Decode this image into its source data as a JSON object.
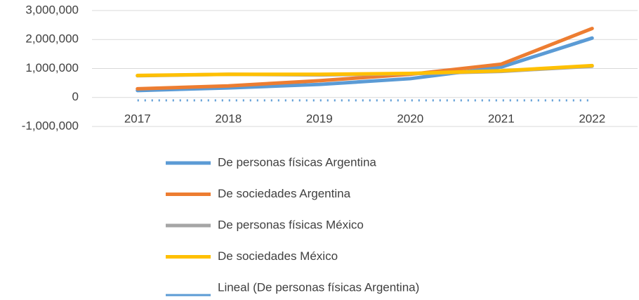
{
  "chart_data": {
    "type": "line",
    "categories": [
      "2017",
      "2018",
      "2019",
      "2020",
      "2021",
      "2022"
    ],
    "series": [
      {
        "name": "De personas físicas Argentina",
        "color": "#5b9bd5",
        "values": [
          240000,
          330000,
          450000,
          650000,
          1050000,
          2050000
        ]
      },
      {
        "name": "De sociedades Argentina",
        "color": "#ed7d31",
        "values": [
          300000,
          400000,
          580000,
          800000,
          1150000,
          2380000
        ]
      },
      {
        "name": "De personas físicas México",
        "color": "#a5a5a5",
        "values": [
          750000,
          800000,
          780000,
          820000,
          900000,
          1080000
        ]
      },
      {
        "name": "De sociedades México",
        "color": "#ffc000",
        "values": [
          760000,
          800000,
          800000,
          830000,
          920000,
          1100000
        ]
      },
      {
        "name": "Lineal (De personas físicas Argentina)",
        "color": "#5b9bd5",
        "dashed": true,
        "values": [
          -100000,
          -100000,
          -100000,
          -100000,
          -100000,
          -100000
        ]
      }
    ],
    "ylim": [
      -1000000,
      3000000
    ],
    "yticks": [
      {
        "value": -1000000,
        "label": "-1,000,000"
      },
      0,
      {
        "value": 1000000,
        "label": "1,000,000"
      },
      {
        "value": 2000000,
        "label": "2,000,000"
      },
      {
        "value": 3000000,
        "label": "3,000,000"
      }
    ],
    "grid": true,
    "legend": "bottom"
  }
}
